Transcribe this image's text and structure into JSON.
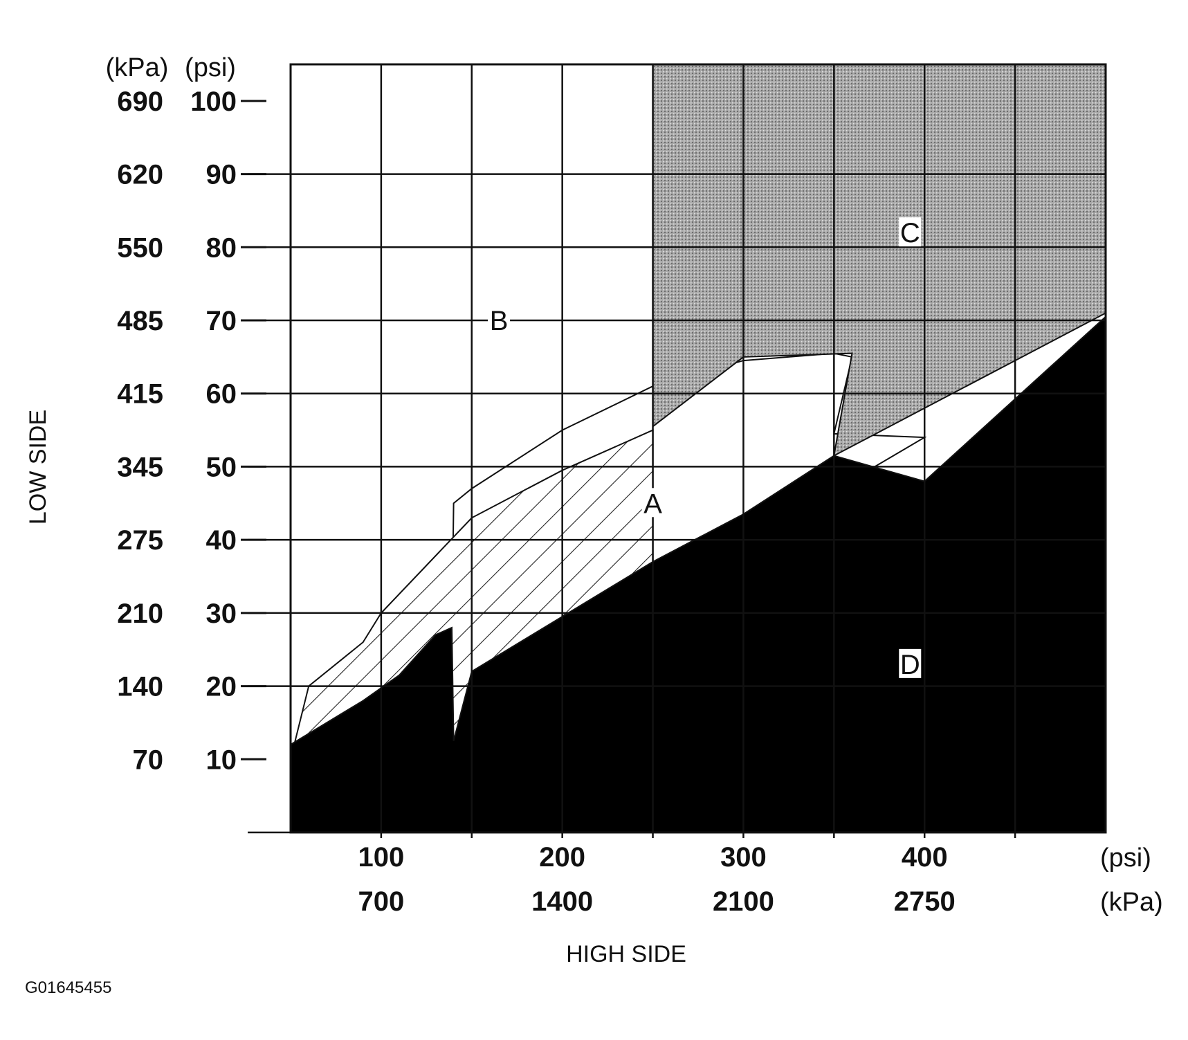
{
  "chart_data": {
    "type": "area",
    "title": "",
    "xlabel": "HIGH SIDE",
    "ylabel": "LOW SIDE",
    "x_unit_primary": "(psi)",
    "x_unit_secondary": "(kPa)",
    "y_unit_primary": "(psi)",
    "y_unit_secondary": "(kPa)",
    "xlim": [
      50,
      500
    ],
    "ylim": [
      0,
      105
    ],
    "x_ticks": [
      {
        "psi": "100",
        "kpa": "700",
        "value": 100
      },
      {
        "psi": "200",
        "kpa": "1400",
        "value": 200
      },
      {
        "psi": "300",
        "kpa": "2100",
        "value": 300
      },
      {
        "psi": "400",
        "kpa": "2750",
        "value": 400
      }
    ],
    "x_gridlines": [
      100,
      150,
      200,
      250,
      300,
      350,
      400,
      450
    ],
    "y_ticks": [
      {
        "psi": "100",
        "kpa": "690",
        "value": 100
      },
      {
        "psi": "90",
        "kpa": "620",
        "value": 90
      },
      {
        "psi": "80",
        "kpa": "550",
        "value": 80
      },
      {
        "psi": "70",
        "kpa": "485",
        "value": 70
      },
      {
        "psi": "60",
        "kpa": "415",
        "value": 60
      },
      {
        "psi": "50",
        "kpa": "345",
        "value": 50
      },
      {
        "psi": "40",
        "kpa": "275",
        "value": 40
      },
      {
        "psi": "30",
        "kpa": "210",
        "value": 30
      },
      {
        "psi": "20",
        "kpa": "140",
        "value": 20
      },
      {
        "psi": "10",
        "kpa": "70",
        "value": 10
      }
    ],
    "y_gridlines": [
      0,
      20,
      30,
      40,
      50,
      60,
      70,
      80,
      90
    ],
    "regions": [
      {
        "label": "A",
        "fill": "white",
        "polygon": [
          [
            139,
            26
          ],
          [
            139,
            16
          ],
          [
            400,
            54
          ],
          [
            350,
            54.5
          ],
          [
            360,
            65
          ],
          [
            350,
            65.5
          ],
          [
            300,
            64.5
          ],
          [
            250,
            61
          ],
          [
            200,
            55
          ],
          [
            150,
            47
          ],
          [
            140,
            45
          ],
          [
            139,
            26
          ]
        ],
        "label_at": [
          250,
          45
        ]
      },
      {
        "label": "B",
        "fill": "hatched",
        "polygon": [
          [
            50,
            0
          ],
          [
            250,
            0
          ],
          [
            250,
            55
          ],
          [
            200,
            49.5
          ],
          [
            150,
            43
          ],
          [
            100,
            30
          ],
          [
            90,
            26
          ],
          [
            60,
            20
          ],
          [
            50,
            10
          ]
        ],
        "label_at": [
          165,
          70
        ]
      },
      {
        "label": "C",
        "fill": "stippled",
        "polygon": [
          [
            250,
            105
          ],
          [
            500,
            105
          ],
          [
            500,
            71
          ],
          [
            350,
            51.5
          ],
          [
            360,
            65.5
          ],
          [
            300,
            65
          ],
          [
            250,
            55.5
          ]
        ],
        "label_at": [
          392,
          82
        ]
      },
      {
        "label": "D",
        "fill": "black",
        "polygon": [
          [
            50,
            0
          ],
          [
            500,
            0
          ],
          [
            500,
            70.5
          ],
          [
            400,
            48
          ],
          [
            350,
            51.5
          ],
          [
            300,
            43.5
          ],
          [
            250,
            37
          ],
          [
            200,
            29.5
          ],
          [
            150,
            22
          ],
          [
            140,
            12.5
          ],
          [
            139,
            28
          ],
          [
            130,
            27
          ],
          [
            110,
            21.5
          ],
          [
            90,
            18
          ],
          [
            50,
            12
          ]
        ],
        "label_at": [
          392,
          23
        ]
      }
    ]
  },
  "figure_id": "G01645455"
}
